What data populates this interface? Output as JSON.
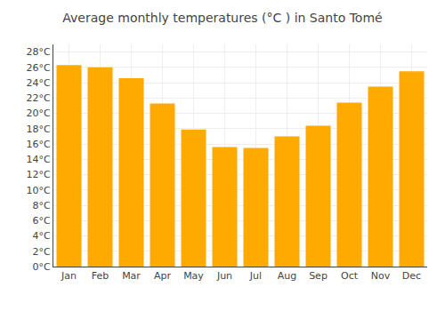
{
  "chart_data": {
    "type": "bar",
    "title": "Average monthly temperatures (°C ) in Santo Tomé",
    "categories": [
      "Jan",
      "Feb",
      "Mar",
      "Apr",
      "May",
      "Jun",
      "Jul",
      "Aug",
      "Sep",
      "Oct",
      "Nov",
      "Dec"
    ],
    "values": [
      26.3,
      26.0,
      24.6,
      21.3,
      17.9,
      15.6,
      15.5,
      17.0,
      18.4,
      21.4,
      23.5,
      25.5
    ],
    "color": "#FFAA00",
    "ylim": [
      0,
      29
    ],
    "yticks": [
      {
        "value": 0,
        "label": "0°C"
      },
      {
        "value": 2,
        "label": "2°C"
      },
      {
        "value": 4,
        "label": "4°C"
      },
      {
        "value": 6,
        "label": "6°C"
      },
      {
        "value": 8,
        "label": "8°C"
      },
      {
        "value": 10,
        "label": "10°C"
      },
      {
        "value": 12,
        "label": "12°C"
      },
      {
        "value": 14,
        "label": "14°C"
      },
      {
        "value": 16,
        "label": "16°C"
      },
      {
        "value": 18,
        "label": "18°C"
      },
      {
        "value": 20,
        "label": "20°C"
      },
      {
        "value": 22,
        "label": "22°C"
      },
      {
        "value": 24,
        "label": "24°C"
      },
      {
        "value": 26,
        "label": "26°C"
      },
      {
        "value": 28,
        "label": "28°C"
      }
    ],
    "grid": true
  }
}
